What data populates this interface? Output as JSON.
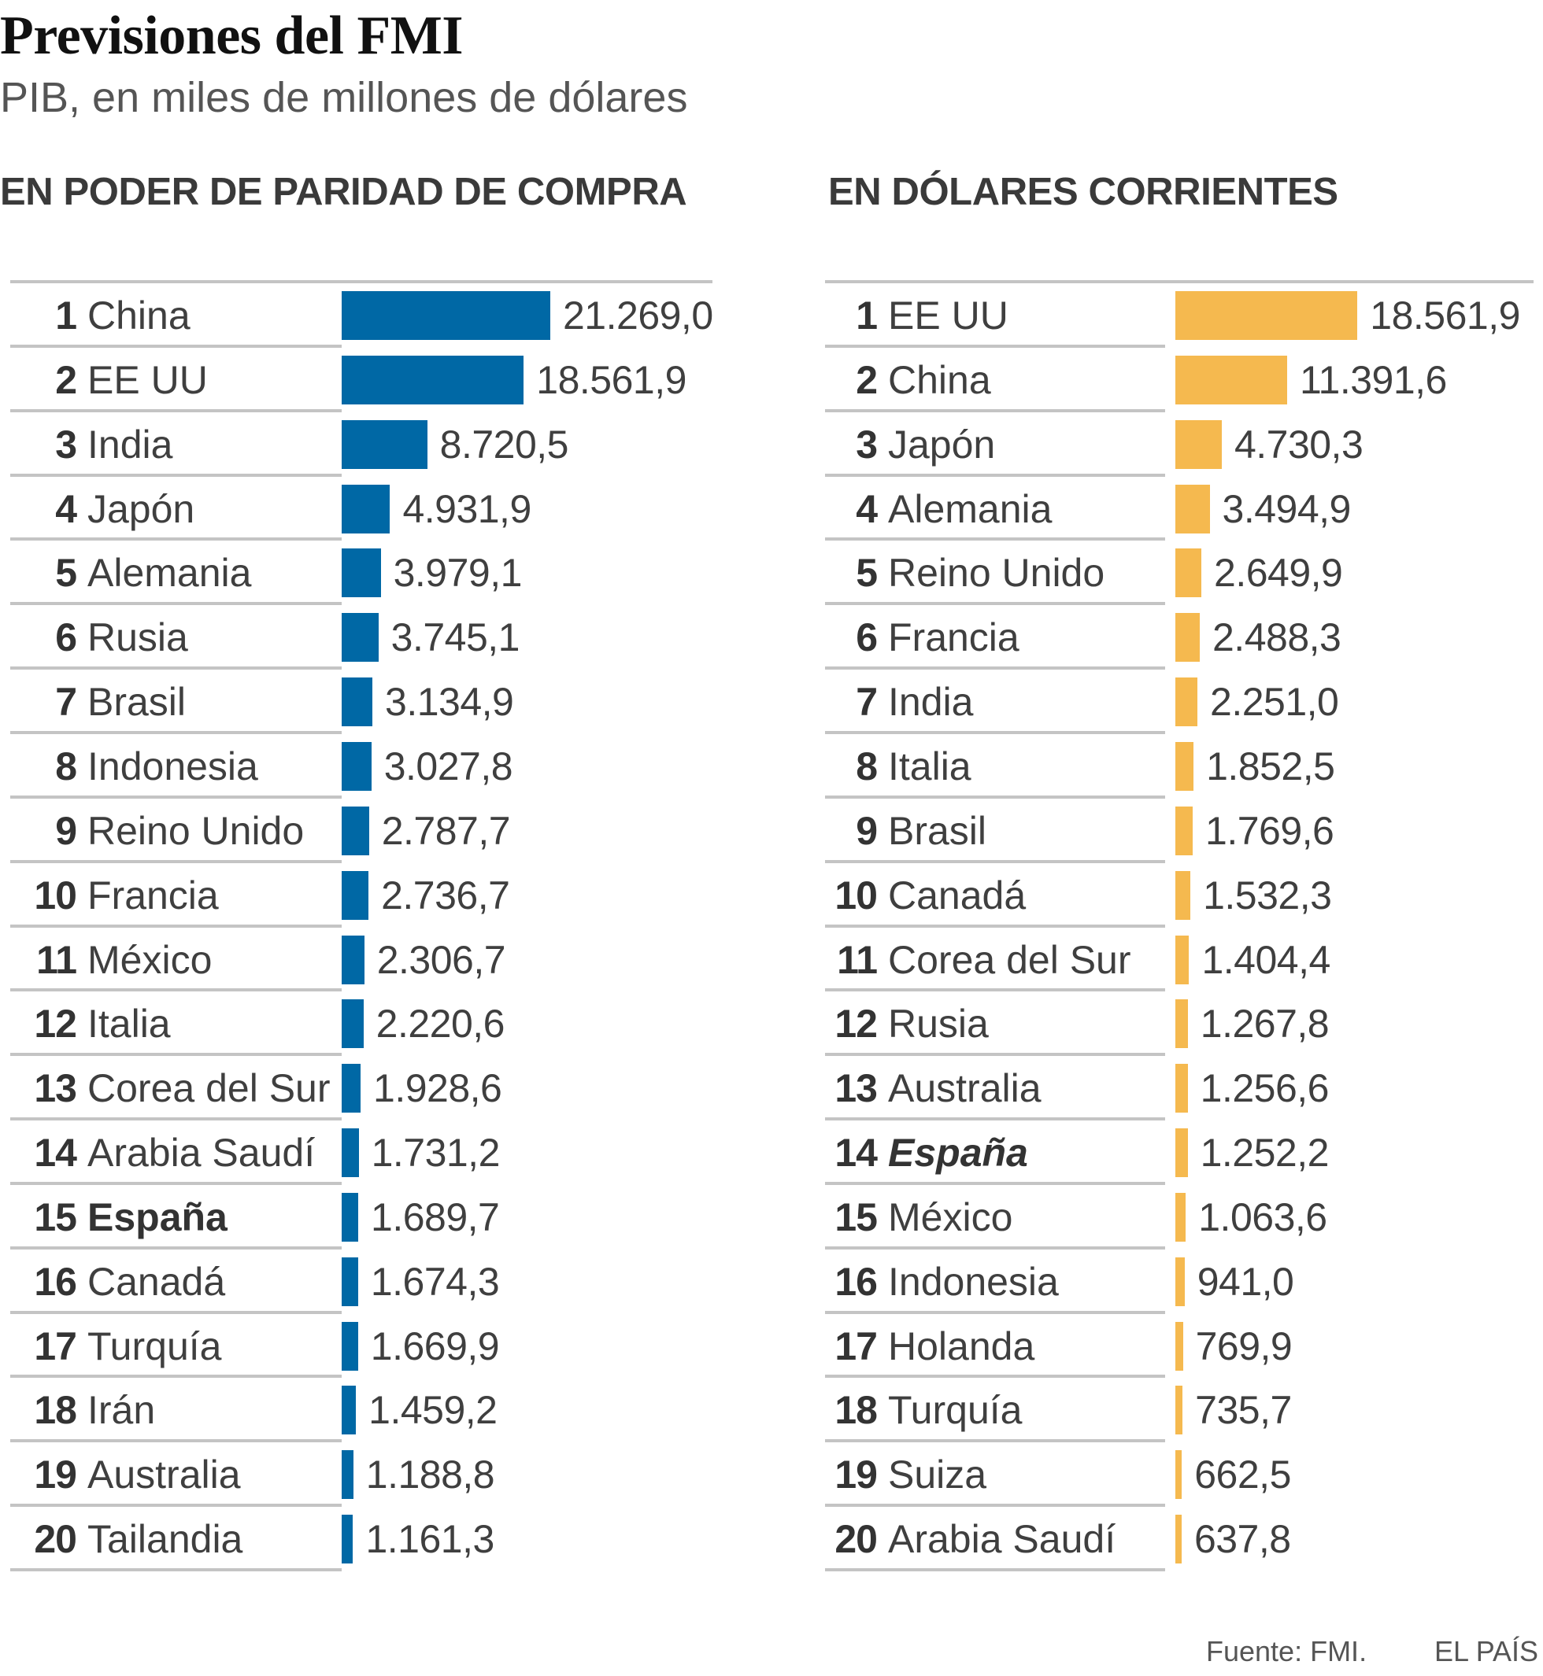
{
  "header": {
    "title": "Previsiones del FMI",
    "subtitle": "PIB, en miles de millones de dólares"
  },
  "colors": {
    "ppp_bar": "#0068a5",
    "usd_bar": "#f5b94f"
  },
  "footer": {
    "source": "Fuente: FMI.",
    "brand": "EL PAÍS"
  },
  "chart_data": [
    {
      "type": "bar",
      "orientation": "horizontal",
      "title": "EN PODER DE PARIDAD DE COMPRA",
      "xlabel": "",
      "ylabel": "",
      "units": "miles de millones de dólares",
      "grid": false,
      "legend": "none",
      "xlim": [
        0,
        21269.0
      ],
      "ranks": [
        "1",
        "2",
        "3",
        "4",
        "5",
        "6",
        "7",
        "8",
        "9",
        "10",
        "11",
        "12",
        "13",
        "14",
        "15",
        "16",
        "17",
        "18",
        "19",
        "20"
      ],
      "categories": [
        "China",
        "EE UU",
        "India",
        "Japón",
        "Alemania",
        "Rusia",
        "Brasil",
        "Indonesia",
        "Reino Unido",
        "Francia",
        "México",
        "Italia",
        "Corea del Sur",
        "Arabia Saudí",
        "España",
        "Canadá",
        "Turquía",
        "Irán",
        "Australia",
        "Tailandia"
      ],
      "values": [
        21269.0,
        18561.9,
        8720.5,
        4931.9,
        3979.1,
        3745.1,
        3134.9,
        3027.8,
        2787.7,
        2736.7,
        2306.7,
        2220.6,
        1928.6,
        1731.2,
        1689.7,
        1674.3,
        1669.9,
        1459.2,
        1188.8,
        1161.3
      ],
      "labels": [
        "21.269,0",
        "18.561,9",
        "8.720,5",
        "4.931,9",
        "3.979,1",
        "3.745,1",
        "3.134,9",
        "3.027,8",
        "2.787,7",
        "2.736,7",
        "2.306,7",
        "2.220,6",
        "1.928,6",
        "1.731,2",
        "1.689,7",
        "1.674,3",
        "1.669,9",
        "1.459,2",
        "1.188,8",
        "1.161,3"
      ],
      "highlight": "España",
      "highlight_style": "bold"
    },
    {
      "type": "bar",
      "orientation": "horizontal",
      "title": "EN DÓLARES CORRIENTES",
      "xlabel": "",
      "ylabel": "",
      "units": "miles de millones de dólares",
      "grid": false,
      "legend": "none",
      "xlim": [
        0,
        21269.0
      ],
      "ranks": [
        "1",
        "2",
        "3",
        "4",
        "5",
        "6",
        "7",
        "8",
        "9",
        "10",
        "11",
        "12",
        "13",
        "14",
        "15",
        "16",
        "17",
        "18",
        "19",
        "20"
      ],
      "categories": [
        "EE UU",
        "China",
        "Japón",
        "Alemania",
        "Reino Unido",
        "Francia",
        "India",
        "Italia",
        "Brasil",
        "Canadá",
        "Corea del Sur",
        "Rusia",
        "Australia",
        "España",
        "México",
        "Indonesia",
        "Holanda",
        "Turquía",
        "Suiza",
        "Arabia Saudí"
      ],
      "values": [
        18561.9,
        11391.6,
        4730.3,
        3494.9,
        2649.9,
        2488.3,
        2251.0,
        1852.5,
        1769.6,
        1532.3,
        1404.4,
        1267.8,
        1256.6,
        1252.2,
        1063.6,
        941.0,
        769.9,
        735.7,
        662.5,
        637.8
      ],
      "labels": [
        "18.561,9",
        "11.391,6",
        "4.730,3",
        "3.494,9",
        "2.649,9",
        "2.488,3",
        "2.251,0",
        "1.852,5",
        "1.769,6",
        "1.532,3",
        "1.404,4",
        "1.267,8",
        "1.256,6",
        "1.252,2",
        "1.063,6",
        "941,0",
        "769,9",
        "735,7",
        "662,5",
        "637,8"
      ],
      "highlight": "España",
      "highlight_style": "bold-italic"
    }
  ]
}
